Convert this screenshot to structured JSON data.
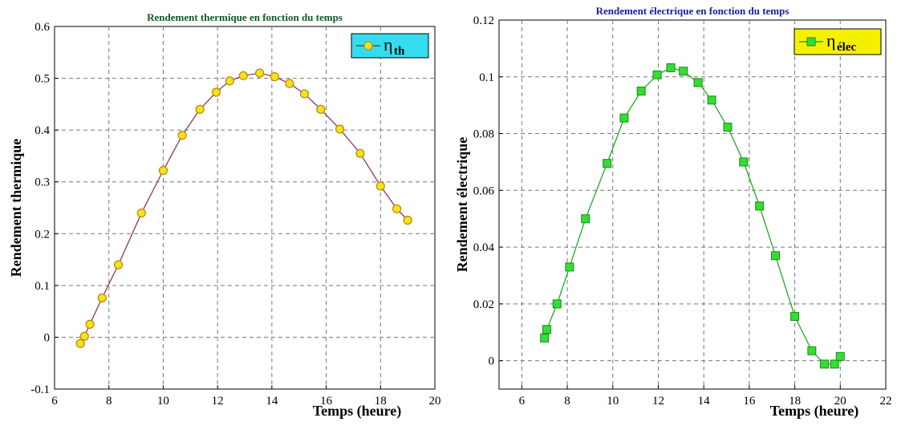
{
  "chart_data": [
    {
      "type": "line",
      "title": "Rendement thermique en fonction du temps",
      "xlabel": "Temps (heure)",
      "ylabel": "Rendement thermique",
      "xlim": [
        6,
        20
      ],
      "ylim": [
        -0.1,
        0.6
      ],
      "xticks": [
        "6",
        "8",
        "10",
        "12",
        "14",
        "16",
        "18",
        "20"
      ],
      "yticks": [
        "-0.1",
        "0",
        "0.1",
        "0.2",
        "0.3",
        "0.4",
        "0.5",
        "0.6"
      ],
      "grid": true,
      "legend_position": "top-right",
      "series": [
        {
          "name": "η",
          "name_sub": "th",
          "line_color": "#8b3a5a",
          "marker": "circle",
          "marker_fill": "#f2e31a",
          "marker_stroke": "#b8860b",
          "x": [
            6.95,
            7.1,
            7.3,
            7.75,
            8.35,
            9.2,
            10.0,
            10.7,
            11.35,
            11.95,
            12.45,
            12.95,
            13.55,
            14.1,
            14.65,
            15.2,
            15.8,
            16.5,
            17.25,
            18.0,
            18.6,
            19.0
          ],
          "y": [
            -0.012,
            0.002,
            0.025,
            0.076,
            0.14,
            0.24,
            0.322,
            0.39,
            0.44,
            0.473,
            0.495,
            0.505,
            0.51,
            0.503,
            0.49,
            0.47,
            0.44,
            0.402,
            0.355,
            0.292,
            0.248,
            0.226
          ]
        }
      ],
      "legend_bg": "#33ddee"
    },
    {
      "type": "line",
      "title": "Rendement électrique en fonction du temps",
      "xlabel": "Temps (heure)",
      "ylabel": "Rendement électrique",
      "xlim": [
        5,
        22
      ],
      "ylim": [
        -0.01,
        0.12
      ],
      "xticks": [
        "6",
        "8",
        "10",
        "12",
        "14",
        "16",
        "18",
        "20",
        "22"
      ],
      "yticks": [
        "0",
        "0.02",
        "0.04",
        "0.06",
        "0.08",
        "0.1",
        "0.12"
      ],
      "grid": true,
      "legend_position": "top-right",
      "series": [
        {
          "name": "η",
          "name_sub": "élec",
          "line_color": "#22aa22",
          "marker": "square",
          "marker_fill": "#33dd33",
          "marker_stroke": "#1a8a1a",
          "x": [
            7.0,
            7.1,
            7.55,
            8.1,
            8.8,
            9.75,
            10.5,
            11.25,
            11.95,
            12.55,
            13.1,
            13.75,
            14.35,
            15.05,
            15.75,
            16.45,
            17.15,
            18.0,
            18.75,
            19.3,
            19.75,
            20.0
          ],
          "y": [
            0.008,
            0.011,
            0.02,
            0.033,
            0.05,
            0.0695,
            0.0855,
            0.095,
            0.1007,
            0.1032,
            0.102,
            0.098,
            0.0918,
            0.0823,
            0.07,
            0.0545,
            0.037,
            0.0156,
            0.0035,
            -0.0012,
            -0.0012,
            0.0015
          ]
        }
      ],
      "legend_bg": "#f5f000"
    }
  ]
}
